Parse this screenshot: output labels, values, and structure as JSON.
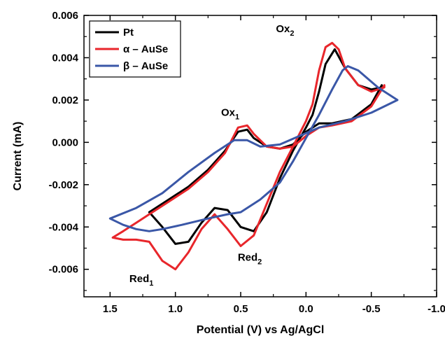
{
  "chart_data": {
    "type": "line",
    "xlabel": "Potential (V) vs Ag/AgCl",
    "ylabel": "Current (mA)",
    "xlim": [
      1.7,
      -1.0
    ],
    "ylim": [
      -0.0073,
      0.006
    ],
    "x_ticks": [
      1.5,
      1.0,
      0.5,
      0.0,
      -0.5,
      -1.0
    ],
    "x_tick_labels": [
      "1.5",
      "1.0",
      "0.5",
      "0.0",
      "-0.5",
      "-1.0"
    ],
    "y_ticks": [
      0.006,
      0.004,
      0.002,
      0.0,
      -0.002,
      -0.004,
      -0.006
    ],
    "y_tick_labels": [
      "0.006",
      "0.004",
      "0.002",
      "0.000",
      "-0.002",
      "-0.004",
      "-0.006"
    ],
    "x_reversed": true,
    "grid": false,
    "legend_position": "top-left",
    "annotations": [
      {
        "base": "Ox",
        "sub": "2",
        "x": 0.16,
        "y": 0.0052
      },
      {
        "base": "Ox",
        "sub": "1",
        "x": 0.58,
        "y": 0.00125
      },
      {
        "base": "Red",
        "sub": "2",
        "x": 0.43,
        "y": -0.0056
      },
      {
        "base": "Red",
        "sub": "1",
        "x": 1.26,
        "y": -0.0066
      }
    ],
    "series": [
      {
        "name": "Pt",
        "color": "#000000",
        "x": [
          1.2,
          1.05,
          0.9,
          0.75,
          0.62,
          0.52,
          0.45,
          0.4,
          0.3,
          0.2,
          0.1,
          0.0,
          -0.1,
          -0.2,
          -0.35,
          -0.5,
          -0.58,
          -0.58,
          -0.5,
          -0.4,
          -0.3,
          -0.22,
          -0.15,
          -0.1,
          -0.05,
          0.0,
          0.1,
          0.2,
          0.3,
          0.4,
          0.5,
          0.6,
          0.7,
          0.8,
          0.9,
          1.0,
          1.1,
          1.2
        ],
        "y": [
          -0.0033,
          -0.0027,
          -0.0021,
          -0.0013,
          -0.0004,
          0.0005,
          0.0006,
          0.0002,
          -0.0002,
          -0.0003,
          -0.0001,
          0.0005,
          0.0009,
          0.0009,
          0.0011,
          0.0018,
          0.0027,
          0.0026,
          0.0025,
          0.0027,
          0.0035,
          0.0044,
          0.0037,
          0.0024,
          0.0013,
          0.0007,
          -0.0004,
          -0.0017,
          -0.0033,
          -0.0042,
          -0.004,
          -0.0032,
          -0.0031,
          -0.0038,
          -0.0047,
          -0.0048,
          -0.004,
          -0.0033
        ]
      },
      {
        "name": "α – AuSe",
        "color": "#e8262b",
        "x": [
          1.48,
          1.4,
          1.3,
          1.2,
          1.05,
          0.9,
          0.75,
          0.62,
          0.52,
          0.45,
          0.4,
          0.3,
          0.2,
          0.1,
          0.0,
          -0.1,
          -0.2,
          -0.35,
          -0.5,
          -0.6,
          -0.6,
          -0.5,
          -0.4,
          -0.3,
          -0.25,
          -0.2,
          -0.15,
          -0.1,
          -0.05,
          0.0,
          0.1,
          0.2,
          0.3,
          0.4,
          0.5,
          0.6,
          0.7,
          0.8,
          0.9,
          1.0,
          1.1,
          1.2,
          1.3,
          1.4,
          1.48
        ],
        "y": [
          -0.0045,
          -0.0042,
          -0.0038,
          -0.0034,
          -0.0028,
          -0.0022,
          -0.0014,
          -0.0005,
          0.0007,
          0.0008,
          0.0004,
          -0.0002,
          -0.0003,
          -0.0002,
          0.0003,
          0.0007,
          0.0008,
          0.001,
          0.0017,
          0.0027,
          0.0026,
          0.0024,
          0.0027,
          0.0035,
          0.0044,
          0.0047,
          0.0045,
          0.0034,
          0.0018,
          0.001,
          -0.0002,
          -0.0014,
          -0.0029,
          -0.0044,
          -0.0049,
          -0.0041,
          -0.0034,
          -0.0041,
          -0.0052,
          -0.006,
          -0.0056,
          -0.0047,
          -0.0046,
          -0.0046,
          -0.0045
        ]
      },
      {
        "name": "β – AuSe",
        "color": "#3a57a7",
        "x": [
          1.5,
          1.3,
          1.1,
          0.9,
          0.7,
          0.55,
          0.45,
          0.35,
          0.2,
          0.05,
          -0.1,
          -0.3,
          -0.5,
          -0.7,
          -0.55,
          -0.4,
          -0.32,
          -0.28,
          -0.2,
          -0.1,
          0.0,
          0.1,
          0.2,
          0.35,
          0.5,
          0.6,
          0.75,
          0.95,
          1.1,
          1.2,
          1.3,
          1.4,
          1.5
        ],
        "y": [
          -0.0036,
          -0.0031,
          -0.0024,
          -0.0014,
          -0.0005,
          0.0001,
          0.0001,
          -0.0002,
          -0.0001,
          0.0003,
          0.0007,
          0.001,
          0.0014,
          0.002,
          0.0026,
          0.0034,
          0.0036,
          0.0034,
          0.0025,
          0.0013,
          0.0002,
          -0.0009,
          -0.0019,
          -0.0027,
          -0.0033,
          -0.0034,
          -0.0036,
          -0.0039,
          -0.0041,
          -0.0042,
          -0.0041,
          -0.0039,
          -0.0036
        ]
      }
    ]
  }
}
